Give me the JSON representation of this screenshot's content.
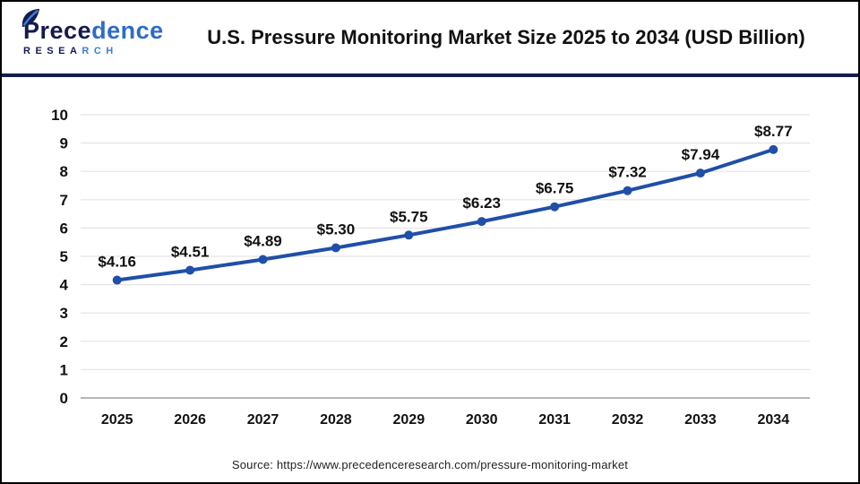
{
  "header": {
    "logo": {
      "name_part1": "Prece",
      "name_part2": "dence",
      "sub_part1": "RESEA",
      "sub_part2": "RCH"
    },
    "title": "U.S. Pressure Monitoring Market Size 2025 to 2034 (USD Billion)"
  },
  "footer": {
    "source": "Source: https://www.precedenceresearch.com/pressure-monitoring-market"
  },
  "colors": {
    "brand_navy": "#141b4d",
    "brand_blue": "#2e6bca",
    "line_blue": "#1F4FA8",
    "grid": "#e4e4e4",
    "axis": "#b5b5b5",
    "label_text": "#111111"
  },
  "chart_data": {
    "type": "line",
    "title": "U.S. Pressure Monitoring Market Size 2025 to 2034 (USD Billion)",
    "categories": [
      "2025",
      "2026",
      "2027",
      "2028",
      "2029",
      "2030",
      "2031",
      "2032",
      "2033",
      "2034"
    ],
    "series": [
      {
        "name": "U.S. Pressure Monitoring Market Size (USD Billion)",
        "values": [
          4.16,
          4.51,
          4.89,
          5.3,
          5.75,
          6.23,
          6.75,
          7.32,
          7.94,
          8.77
        ]
      }
    ],
    "point_labels": [
      "$4.16",
      "$4.51",
      "$4.89",
      "$5.30",
      "$5.75",
      "$6.23",
      "$6.75",
      "$7.32",
      "$7.94",
      "$8.77"
    ],
    "xlabel": "",
    "ylabel": "",
    "ylim": [
      0,
      10
    ],
    "y_ticks": [
      0,
      1,
      2,
      3,
      4,
      5,
      6,
      7,
      8,
      9,
      10
    ],
    "grid": true,
    "legend": "none",
    "line_color": "#1F4FA8",
    "marker": "circle"
  }
}
